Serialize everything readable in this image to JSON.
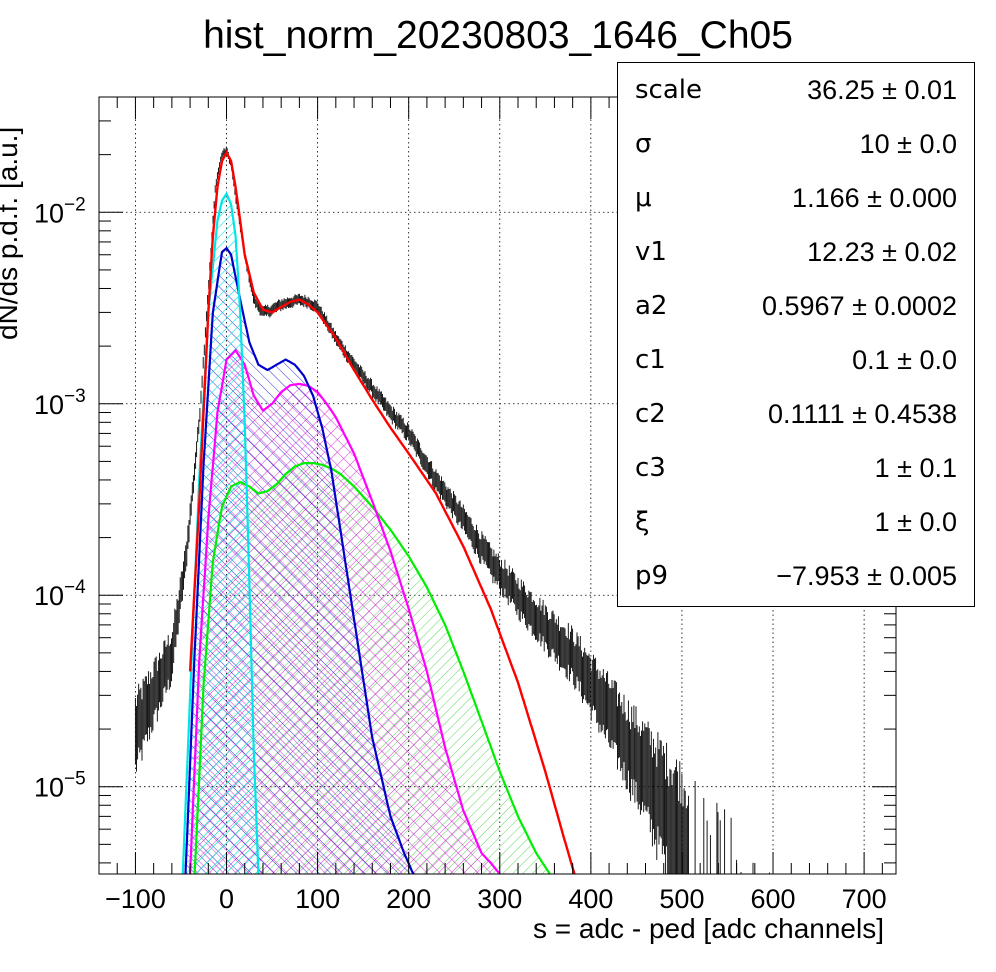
{
  "chart_data": {
    "type": "line",
    "title": "hist_norm_20230803_1646_Ch05",
    "xlabel": "s = adc - ped [adc channels]",
    "ylabel": "dN/ds p.d.f. [a.u.]",
    "xlim": [
      -140,
      735
    ],
    "ylim": [
      3.5e-06,
      0.04
    ],
    "yscale": "log",
    "grid": true,
    "x_ticks": [
      -100,
      0,
      100,
      200,
      300,
      400,
      500,
      600,
      700
    ],
    "x_tick_labels": [
      "−100",
      "0",
      "100",
      "200",
      "300",
      "400",
      "500",
      "600",
      "700"
    ],
    "y_ticks": [
      {
        "mantissa": "10",
        "exp": "−5",
        "value": 1e-05
      },
      {
        "mantissa": "10",
        "exp": "−4",
        "value": 0.0001
      },
      {
        "mantissa": "10",
        "exp": "−3",
        "value": 0.001
      },
      {
        "mantissa": "10",
        "exp": "−2",
        "value": 0.01
      }
    ],
    "series": [
      {
        "color": "#000000",
        "style": "histogram",
        "x": [
          -100,
          -60,
          -45,
          -30,
          -20,
          -12,
          -5,
          0,
          5,
          10,
          20,
          30,
          40,
          50,
          60,
          70,
          80,
          90,
          100,
          120,
          140,
          160,
          180,
          200,
          230,
          260,
          290,
          320,
          350,
          380
        ],
        "y": [
          2e-05,
          5e-05,
          0.00015,
          0.0008,
          0.004,
          0.014,
          0.02,
          0.021,
          0.018,
          0.012,
          0.006,
          0.0035,
          0.003,
          0.0031,
          0.0033,
          0.0034,
          0.0035,
          0.0034,
          0.0032,
          0.0022,
          0.0016,
          0.0012,
          0.0009,
          0.0007,
          0.0004,
          0.00025,
          0.00015,
          0.0001,
          7e-05,
          5e-05
        ]
      },
      {
        "color": "#ff0000",
        "style": "line",
        "x": [
          -40,
          -30,
          -20,
          -15,
          -10,
          -5,
          0,
          5,
          10,
          15,
          20,
          30,
          40,
          50,
          60,
          70,
          80,
          90,
          100,
          120,
          140,
          160,
          180,
          200,
          230,
          260,
          290,
          320,
          350,
          370,
          382
        ],
        "y": [
          4e-05,
          0.0003,
          0.003,
          0.0075,
          0.0135,
          0.0185,
          0.0205,
          0.0185,
          0.0135,
          0.009,
          0.006,
          0.0038,
          0.0031,
          0.003,
          0.0032,
          0.0034,
          0.0035,
          0.0033,
          0.003,
          0.0022,
          0.0015,
          0.00105,
          0.00075,
          0.00055,
          0.00034,
          0.00018,
          8.5e-05,
          3.5e-05,
          1.2e-05,
          5.5e-06,
          3.5e-06
        ]
      },
      {
        "color": "#00ffff",
        "style": "hatched",
        "x": [
          -48,
          -40,
          -30,
          -20,
          -10,
          -5,
          0,
          5,
          10,
          15,
          20,
          25,
          30,
          35
        ],
        "y": [
          3.5e-06,
          3e-05,
          0.0004,
          0.003,
          0.009,
          0.0115,
          0.0125,
          0.011,
          0.0075,
          0.003,
          0.0008,
          0.00012,
          1.5e-05,
          3.5e-06
        ]
      },
      {
        "color": "#0000cc",
        "style": "hatched",
        "x": [
          -45,
          -35,
          -25,
          -15,
          -5,
          0,
          5,
          15,
          25,
          35,
          45,
          55,
          65,
          75,
          85,
          95,
          105,
          115,
          125,
          140,
          160,
          180,
          195,
          205
        ],
        "y": [
          3.5e-06,
          5e-05,
          0.0005,
          0.003,
          0.0062,
          0.0065,
          0.006,
          0.0035,
          0.0021,
          0.0016,
          0.0015,
          0.0016,
          0.0017,
          0.0016,
          0.0014,
          0.0011,
          0.00075,
          0.00045,
          0.00022,
          7.5e-05,
          1.8e-05,
          7e-06,
          4.5e-06,
          3.5e-06
        ]
      },
      {
        "color": "#ff00ff",
        "style": "hatched",
        "x": [
          -40,
          -30,
          -20,
          -10,
          0,
          10,
          20,
          30,
          40,
          50,
          60,
          70,
          80,
          90,
          100,
          110,
          120,
          140,
          160,
          180,
          200,
          220,
          240,
          260,
          280,
          290,
          300
        ],
        "y": [
          3.5e-06,
          4.5e-05,
          0.00025,
          0.0009,
          0.0017,
          0.0019,
          0.0016,
          0.0011,
          0.00092,
          0.001,
          0.00115,
          0.00125,
          0.00127,
          0.00124,
          0.00115,
          0.001,
          0.00085,
          0.00055,
          0.00031,
          0.00017,
          8.5e-05,
          4e-05,
          1.6e-05,
          7.5e-06,
          4.5e-06,
          4e-06,
          3.5e-06
        ]
      },
      {
        "color": "#00ee00",
        "style": "hatched",
        "x": [
          -35,
          -25,
          -15,
          -5,
          5,
          15,
          25,
          35,
          45,
          55,
          65,
          75,
          85,
          95,
          105,
          115,
          125,
          140,
          160,
          180,
          200,
          220,
          240,
          260,
          280,
          300,
          320,
          340,
          355
        ],
        "y": [
          3.5e-06,
          3.5e-05,
          0.00015,
          0.00029,
          0.00037,
          0.00039,
          0.00037,
          0.00034,
          0.00035,
          0.00038,
          0.00043,
          0.00047,
          0.00049,
          0.00049,
          0.00048,
          0.00046,
          0.00043,
          0.00037,
          0.00029,
          0.00022,
          0.00016,
          0.00011,
          7e-05,
          4e-05,
          2.2e-05,
          1.2e-05,
          7e-06,
          4.5e-06,
          3.5e-06
        ]
      }
    ]
  },
  "stats": [
    {
      "name": "scale",
      "value": "36.25 ± 0.01"
    },
    {
      "name": "σ",
      "value": "10 ± 0.0"
    },
    {
      "name": "μ",
      "value": "1.166 ± 0.000"
    },
    {
      "name": "v1",
      "value": "12.23 ± 0.02"
    },
    {
      "name": "a2",
      "value": "0.5967 ± 0.0002"
    },
    {
      "name": "c1",
      "value": "0.1 ± 0.0"
    },
    {
      "name": "c2",
      "value": "0.1111 ± 0.4538"
    },
    {
      "name": "c3",
      "value": "1 ± 0.1"
    },
    {
      "name": "ξ",
      "value": "1 ± 0.0"
    },
    {
      "name": "p9",
      "value": "−7.953 ± 0.005"
    }
  ]
}
